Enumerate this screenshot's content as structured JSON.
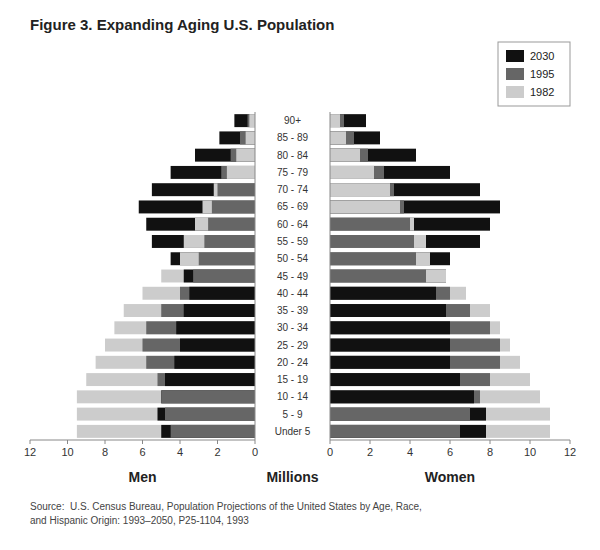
{
  "chart_data": [
    {
      "type": "bar",
      "orientation": "horizontal",
      "title": "Figure 3. Expanding Aging U.S. Population",
      "xlabel": "Men",
      "annotations": [
        "Millions",
        "Source:  U.S. Census Bureau, Population Projections of the United States by Age, Race,\nand Hispanic Origin: 1993–2050, P25-1104, 1993"
      ],
      "categories": [
        "90+",
        "85 - 89",
        "80 - 84",
        "75 - 79",
        "70 - 74",
        "65 - 69",
        "60 - 64",
        "55 - 59",
        "50 - 54",
        "45 - 49",
        "40 - 44",
        "35 - 39",
        "30 - 34",
        "25 - 29",
        "20 - 24",
        "15 - 19",
        "10 - 14",
        "5 - 9",
        "Under 5"
      ],
      "series": [
        {
          "color": "#111111",
          "values": [
            1.1,
            1.9,
            3.2,
            4.5,
            5.5,
            6.2,
            5.8,
            5.5,
            4.5,
            3.8,
            3.5,
            3.8,
            4.2,
            4.0,
            4.3,
            4.8,
            5.0,
            5.2,
            5.0
          ]
        },
        {
          "color": "#666666",
          "values": [
            0.4,
            0.8,
            1.3,
            1.8,
            2.0,
            2.3,
            2.5,
            2.7,
            3.0,
            3.3,
            4.0,
            5.0,
            5.8,
            6.0,
            5.8,
            5.2,
            5.0,
            4.8,
            4.5
          ]
        },
        {
          "color": "#cccccc",
          "values": [
            0.3,
            0.5,
            1.0,
            1.5,
            2.2,
            2.8,
            3.2,
            3.8,
            4.0,
            5.0,
            6.0,
            7.0,
            7.5,
            8.0,
            8.5,
            9.0,
            9.5,
            9.5,
            9.5
          ]
        }
      ],
      "xlim": [
        12,
        0
      ],
      "xticks": [
        12,
        10,
        8,
        6,
        4,
        2,
        0
      ]
    },
    {
      "type": "bar",
      "orientation": "horizontal",
      "xlabel": "Women",
      "categories": [
        "90+",
        "85 - 89",
        "80 - 84",
        "75 - 79",
        "70 - 74",
        "65 - 69",
        "60 - 64",
        "55 - 59",
        "50 - 54",
        "45 - 49",
        "40 - 44",
        "35 - 39",
        "30 - 34",
        "25 - 29",
        "20 - 24",
        "15 - 19",
        "10 - 14",
        "5 - 9",
        "Under 5"
      ],
      "series": [
        {
          "name": "2030",
          "color": "#111111",
          "values": [
            1.8,
            2.5,
            4.3,
            6.0,
            7.5,
            8.5,
            8.0,
            7.5,
            6.0,
            5.8,
            5.3,
            5.8,
            6.0,
            6.0,
            6.0,
            6.5,
            7.2,
            7.8,
            7.8
          ]
        },
        {
          "name": "1995",
          "color": "#666666",
          "values": [
            0.7,
            1.2,
            1.9,
            2.7,
            3.2,
            3.7,
            4.0,
            4.2,
            4.3,
            4.8,
            6.0,
            7.0,
            8.0,
            8.5,
            8.5,
            8.0,
            7.5,
            7.0,
            6.5
          ]
        },
        {
          "name": "1982",
          "color": "#cccccc",
          "values": [
            0.5,
            0.8,
            1.5,
            2.2,
            3.0,
            3.5,
            4.2,
            4.8,
            5.0,
            5.8,
            6.8,
            8.0,
            8.5,
            9.0,
            9.5,
            10.0,
            10.5,
            11.0,
            11.0
          ]
        }
      ],
      "xlim": [
        0,
        12
      ],
      "xticks": [
        0,
        2,
        4,
        6,
        8,
        10,
        12
      ],
      "legend": "upper right"
    }
  ]
}
